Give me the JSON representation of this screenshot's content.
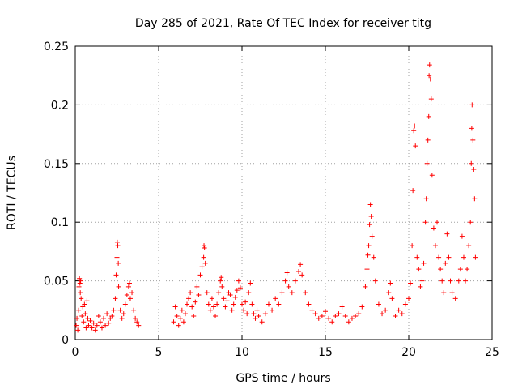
{
  "chart_data": {
    "type": "scatter",
    "title": "Day 285 of 2021, Rate Of TEC Index for receiver titg",
    "xlabel": "GPS time / hours",
    "ylabel": "ROTI / TECUs",
    "xlim": [
      0,
      25
    ],
    "ylim": [
      0,
      0.25
    ],
    "xticks": [
      0,
      5,
      10,
      15,
      20,
      25
    ],
    "xtick_labels": [
      "0",
      "5",
      "10",
      "15",
      "20",
      "25"
    ],
    "yticks": [
      0,
      0.05,
      0.1,
      0.15,
      0.2,
      0.25
    ],
    "ytick_labels": [
      "0",
      "0.05",
      "0.1",
      "0.15",
      "0.2",
      "0.25"
    ],
    "grid": true,
    "marker": "+",
    "color": "#ff0000",
    "series": [
      {
        "name": "",
        "points": [
          [
            0.05,
            0.012
          ],
          [
            0.1,
            0.018
          ],
          [
            0.15,
            0.008
          ],
          [
            0.2,
            0.025
          ],
          [
            0.22,
            0.045
          ],
          [
            0.25,
            0.052
          ],
          [
            0.28,
            0.048
          ],
          [
            0.3,
            0.04
          ],
          [
            0.32,
            0.05
          ],
          [
            0.35,
            0.035
          ],
          [
            0.4,
            0.02
          ],
          [
            0.45,
            0.028
          ],
          [
            0.5,
            0.015
          ],
          [
            0.55,
            0.03
          ],
          [
            0.6,
            0.022
          ],
          [
            0.65,
            0.01
          ],
          [
            0.7,
            0.033
          ],
          [
            0.75,
            0.018
          ],
          [
            0.8,
            0.012
          ],
          [
            0.9,
            0.016
          ],
          [
            1.0,
            0.01
          ],
          [
            1.1,
            0.014
          ],
          [
            1.2,
            0.008
          ],
          [
            1.3,
            0.012
          ],
          [
            1.4,
            0.02
          ],
          [
            1.5,
            0.015
          ],
          [
            1.6,
            0.01
          ],
          [
            1.7,
            0.018
          ],
          [
            1.8,
            0.012
          ],
          [
            1.9,
            0.022
          ],
          [
            2.0,
            0.014
          ],
          [
            2.1,
            0.018
          ],
          [
            2.2,
            0.02
          ],
          [
            2.3,
            0.025
          ],
          [
            2.4,
            0.035
          ],
          [
            2.45,
            0.055
          ],
          [
            2.5,
            0.07
          ],
          [
            2.52,
            0.083
          ],
          [
            2.55,
            0.08
          ],
          [
            2.58,
            0.065
          ],
          [
            2.6,
            0.045
          ],
          [
            2.7,
            0.025
          ],
          [
            2.8,
            0.018
          ],
          [
            2.9,
            0.022
          ],
          [
            3.0,
            0.03
          ],
          [
            3.1,
            0.038
          ],
          [
            3.2,
            0.045
          ],
          [
            3.25,
            0.048
          ],
          [
            3.3,
            0.035
          ],
          [
            3.4,
            0.04
          ],
          [
            3.5,
            0.025
          ],
          [
            3.6,
            0.018
          ],
          [
            3.7,
            0.015
          ],
          [
            3.8,
            0.012
          ],
          [
            5.9,
            0.015
          ],
          [
            6.0,
            0.028
          ],
          [
            6.1,
            0.02
          ],
          [
            6.2,
            0.012
          ],
          [
            6.3,
            0.018
          ],
          [
            6.4,
            0.025
          ],
          [
            6.5,
            0.015
          ],
          [
            6.6,
            0.022
          ],
          [
            6.7,
            0.03
          ],
          [
            6.8,
            0.035
          ],
          [
            6.9,
            0.04
          ],
          [
            7.0,
            0.028
          ],
          [
            7.1,
            0.02
          ],
          [
            7.2,
            0.032
          ],
          [
            7.3,
            0.045
          ],
          [
            7.4,
            0.038
          ],
          [
            7.5,
            0.055
          ],
          [
            7.6,
            0.062
          ],
          [
            7.7,
            0.07
          ],
          [
            7.72,
            0.08
          ],
          [
            7.75,
            0.078
          ],
          [
            7.8,
            0.065
          ],
          [
            7.9,
            0.04
          ],
          [
            8.0,
            0.03
          ],
          [
            8.1,
            0.025
          ],
          [
            8.2,
            0.035
          ],
          [
            8.3,
            0.028
          ],
          [
            8.4,
            0.02
          ],
          [
            8.5,
            0.03
          ],
          [
            8.6,
            0.04
          ],
          [
            8.7,
            0.05
          ],
          [
            8.75,
            0.053
          ],
          [
            8.8,
            0.045
          ],
          [
            8.9,
            0.035
          ],
          [
            9.0,
            0.028
          ],
          [
            9.1,
            0.033
          ],
          [
            9.2,
            0.04
          ],
          [
            9.3,
            0.038
          ],
          [
            9.4,
            0.025
          ],
          [
            9.5,
            0.03
          ],
          [
            9.6,
            0.036
          ],
          [
            9.7,
            0.042
          ],
          [
            9.8,
            0.05
          ],
          [
            9.9,
            0.044
          ],
          [
            10.0,
            0.03
          ],
          [
            10.1,
            0.025
          ],
          [
            10.2,
            0.032
          ],
          [
            10.3,
            0.022
          ],
          [
            10.4,
            0.04
          ],
          [
            10.5,
            0.048
          ],
          [
            10.6,
            0.03
          ],
          [
            10.7,
            0.022
          ],
          [
            10.8,
            0.018
          ],
          [
            10.9,
            0.025
          ],
          [
            11.0,
            0.02
          ],
          [
            11.2,
            0.015
          ],
          [
            11.4,
            0.022
          ],
          [
            11.6,
            0.03
          ],
          [
            11.8,
            0.025
          ],
          [
            12.0,
            0.035
          ],
          [
            12.2,
            0.03
          ],
          [
            12.4,
            0.04
          ],
          [
            12.6,
            0.05
          ],
          [
            12.7,
            0.057
          ],
          [
            12.8,
            0.045
          ],
          [
            13.0,
            0.04
          ],
          [
            13.2,
            0.05
          ],
          [
            13.4,
            0.058
          ],
          [
            13.5,
            0.064
          ],
          [
            13.6,
            0.055
          ],
          [
            13.8,
            0.04
          ],
          [
            14.0,
            0.03
          ],
          [
            14.2,
            0.025
          ],
          [
            14.4,
            0.022
          ],
          [
            14.6,
            0.018
          ],
          [
            14.8,
            0.02
          ],
          [
            15.0,
            0.024
          ],
          [
            15.2,
            0.018
          ],
          [
            15.4,
            0.015
          ],
          [
            15.6,
            0.02
          ],
          [
            15.8,
            0.022
          ],
          [
            16.0,
            0.028
          ],
          [
            16.2,
            0.02
          ],
          [
            16.4,
            0.015
          ],
          [
            16.6,
            0.018
          ],
          [
            16.8,
            0.02
          ],
          [
            17.0,
            0.022
          ],
          [
            17.2,
            0.028
          ],
          [
            17.4,
            0.045
          ],
          [
            17.5,
            0.06
          ],
          [
            17.55,
            0.072
          ],
          [
            17.6,
            0.08
          ],
          [
            17.65,
            0.098
          ],
          [
            17.7,
            0.115
          ],
          [
            17.75,
            0.105
          ],
          [
            17.8,
            0.088
          ],
          [
            17.9,
            0.07
          ],
          [
            18.0,
            0.05
          ],
          [
            18.2,
            0.03
          ],
          [
            18.4,
            0.022
          ],
          [
            18.6,
            0.025
          ],
          [
            18.8,
            0.04
          ],
          [
            18.9,
            0.048
          ],
          [
            19.0,
            0.035
          ],
          [
            19.2,
            0.02
          ],
          [
            19.4,
            0.025
          ],
          [
            19.6,
            0.022
          ],
          [
            19.8,
            0.03
          ],
          [
            20.0,
            0.035
          ],
          [
            20.1,
            0.048
          ],
          [
            20.2,
            0.08
          ],
          [
            20.25,
            0.127
          ],
          [
            20.3,
            0.178
          ],
          [
            20.35,
            0.182
          ],
          [
            20.4,
            0.165
          ],
          [
            20.5,
            0.07
          ],
          [
            20.6,
            0.06
          ],
          [
            20.7,
            0.045
          ],
          [
            20.8,
            0.05
          ],
          [
            20.9,
            0.065
          ],
          [
            21.0,
            0.1
          ],
          [
            21.05,
            0.12
          ],
          [
            21.1,
            0.15
          ],
          [
            21.15,
            0.17
          ],
          [
            21.2,
            0.19
          ],
          [
            21.22,
            0.225
          ],
          [
            21.25,
            0.234
          ],
          [
            21.3,
            0.222
          ],
          [
            21.35,
            0.205
          ],
          [
            21.4,
            0.14
          ],
          [
            21.5,
            0.095
          ],
          [
            21.6,
            0.08
          ],
          [
            21.7,
            0.1
          ],
          [
            21.8,
            0.07
          ],
          [
            21.9,
            0.06
          ],
          [
            22.0,
            0.05
          ],
          [
            22.1,
            0.04
          ],
          [
            22.2,
            0.065
          ],
          [
            22.3,
            0.09
          ],
          [
            22.4,
            0.07
          ],
          [
            22.5,
            0.05
          ],
          [
            22.6,
            0.04
          ],
          [
            22.8,
            0.035
          ],
          [
            23.0,
            0.05
          ],
          [
            23.1,
            0.06
          ],
          [
            23.2,
            0.088
          ],
          [
            23.3,
            0.07
          ],
          [
            23.4,
            0.05
          ],
          [
            23.5,
            0.06
          ],
          [
            23.6,
            0.08
          ],
          [
            23.7,
            0.1
          ],
          [
            23.75,
            0.15
          ],
          [
            23.78,
            0.18
          ],
          [
            23.8,
            0.2
          ],
          [
            23.85,
            0.17
          ],
          [
            23.9,
            0.145
          ],
          [
            23.95,
            0.12
          ],
          [
            24.0,
            0.07
          ]
        ]
      }
    ]
  }
}
